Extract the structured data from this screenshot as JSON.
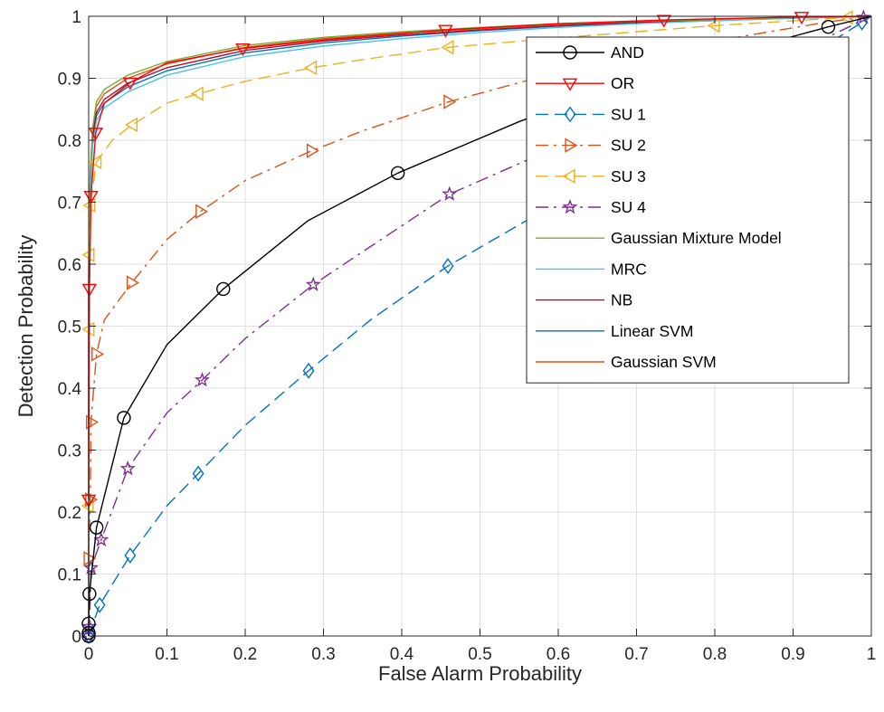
{
  "chart_data": {
    "type": "line",
    "title": "",
    "xlabel": "False Alarm Probability",
    "ylabel": "Detection Probability",
    "xlim": [
      0,
      1
    ],
    "ylim": [
      0,
      1
    ],
    "xticks": [
      "0",
      "0.1",
      "0.2",
      "0.3",
      "0.4",
      "0.5",
      "0.6",
      "0.7",
      "0.8",
      "0.9",
      "1"
    ],
    "yticks": [
      "0",
      "0.1",
      "0.2",
      "0.3",
      "0.4",
      "0.5",
      "0.6",
      "0.7",
      "0.8",
      "0.9",
      "1"
    ],
    "grid": true,
    "legend_position": "top-right",
    "series": [
      {
        "name": "AND",
        "color": "#000000",
        "dash": "solid",
        "marker": "circle",
        "points": [
          [
            0,
            0
          ],
          [
            0,
            0.005
          ],
          [
            0,
            0.02
          ],
          [
            0.001,
            0.068
          ],
          [
            0.01,
            0.175
          ],
          [
            0.045,
            0.352
          ],
          [
            0.1,
            0.47
          ],
          [
            0.172,
            0.56
          ],
          [
            0.28,
            0.67
          ],
          [
            0.395,
            0.747
          ],
          [
            0.55,
            0.83
          ],
          [
            0.7,
            0.9
          ],
          [
            0.82,
            0.94
          ],
          [
            0.945,
            0.983
          ],
          [
            1,
            1
          ]
        ],
        "marker_points": [
          [
            0,
            0
          ],
          [
            0,
            0.005
          ],
          [
            0,
            0.02
          ],
          [
            0.001,
            0.068
          ],
          [
            0.01,
            0.175
          ],
          [
            0.045,
            0.352
          ],
          [
            0.172,
            0.56
          ],
          [
            0.395,
            0.747
          ],
          [
            0.945,
            0.983
          ]
        ]
      },
      {
        "name": "OR",
        "color": "#ff0000",
        "dash": "solid",
        "marker": "triangle-down",
        "points": [
          [
            0,
            0.22
          ],
          [
            0.001,
            0.56
          ],
          [
            0.003,
            0.71
          ],
          [
            0.009,
            0.812
          ],
          [
            0.02,
            0.86
          ],
          [
            0.053,
            0.893
          ],
          [
            0.1,
            0.925
          ],
          [
            0.197,
            0.948
          ],
          [
            0.3,
            0.962
          ],
          [
            0.456,
            0.978
          ],
          [
            0.6,
            0.988
          ],
          [
            0.735,
            0.994
          ],
          [
            0.911,
            0.999
          ],
          [
            1,
            1
          ]
        ],
        "marker_points": [
          [
            0,
            0.22
          ],
          [
            0.001,
            0.56
          ],
          [
            0.003,
            0.71
          ],
          [
            0.009,
            0.812
          ],
          [
            0.053,
            0.893
          ],
          [
            0.197,
            0.948
          ],
          [
            0.456,
            0.978
          ],
          [
            0.735,
            0.994
          ],
          [
            0.911,
            0.999
          ]
        ]
      },
      {
        "name": "SU 1",
        "color": "#0072bd",
        "dash": "dash",
        "marker": "diamond",
        "points": [
          [
            0,
            0
          ],
          [
            0.014,
            0.05
          ],
          [
            0.053,
            0.13
          ],
          [
            0.1,
            0.21
          ],
          [
            0.14,
            0.262
          ],
          [
            0.2,
            0.34
          ],
          [
            0.281,
            0.428
          ],
          [
            0.36,
            0.51
          ],
          [
            0.459,
            0.597
          ],
          [
            0.6,
            0.7
          ],
          [
            0.75,
            0.8
          ],
          [
            0.85,
            0.88
          ],
          [
            0.95,
            0.96
          ],
          [
            0.988,
            0.99
          ],
          [
            1,
            1
          ]
        ],
        "marker_points": [
          [
            0,
            0
          ],
          [
            0.014,
            0.05
          ],
          [
            0.053,
            0.13
          ],
          [
            0.14,
            0.262
          ],
          [
            0.281,
            0.428
          ],
          [
            0.459,
            0.597
          ],
          [
            0.988,
            0.99
          ]
        ]
      },
      {
        "name": "SU 2",
        "color": "#d95319",
        "dash": "dashdot",
        "marker": "triangle-right",
        "points": [
          [
            0,
            0.125
          ],
          [
            0.002,
            0.22
          ],
          [
            0.003,
            0.345
          ],
          [
            0.01,
            0.455
          ],
          [
            0.02,
            0.51
          ],
          [
            0.055,
            0.57
          ],
          [
            0.1,
            0.64
          ],
          [
            0.143,
            0.685
          ],
          [
            0.2,
            0.735
          ],
          [
            0.285,
            0.783
          ],
          [
            0.35,
            0.815
          ],
          [
            0.46,
            0.862
          ],
          [
            0.6,
            0.91
          ],
          [
            0.8,
            0.96
          ],
          [
            0.94,
            0.99
          ],
          [
            1,
            1
          ]
        ],
        "marker_points": [
          [
            0,
            0.125
          ],
          [
            0.002,
            0.22
          ],
          [
            0.003,
            0.345
          ],
          [
            0.01,
            0.455
          ],
          [
            0.055,
            0.57
          ],
          [
            0.143,
            0.685
          ],
          [
            0.285,
            0.783
          ],
          [
            0.46,
            0.862
          ]
        ]
      },
      {
        "name": "SU 3",
        "color": "#edb120",
        "dash": "dash",
        "marker": "triangle-left",
        "points": [
          [
            0,
            0.21
          ],
          [
            0.001,
            0.495
          ],
          [
            0.001,
            0.615
          ],
          [
            0.002,
            0.695
          ],
          [
            0.01,
            0.765
          ],
          [
            0.03,
            0.8
          ],
          [
            0.056,
            0.825
          ],
          [
            0.1,
            0.86
          ],
          [
            0.14,
            0.875
          ],
          [
            0.2,
            0.895
          ],
          [
            0.285,
            0.917
          ],
          [
            0.35,
            0.93
          ],
          [
            0.46,
            0.95
          ],
          [
            0.6,
            0.965
          ],
          [
            0.8,
            0.985
          ],
          [
            0.97,
            0.998
          ],
          [
            1,
            1
          ]
        ],
        "marker_points": [
          [
            0,
            0.21
          ],
          [
            0.001,
            0.495
          ],
          [
            0.001,
            0.615
          ],
          [
            0.002,
            0.695
          ],
          [
            0.01,
            0.765
          ],
          [
            0.056,
            0.825
          ],
          [
            0.14,
            0.875
          ],
          [
            0.285,
            0.917
          ],
          [
            0.46,
            0.95
          ],
          [
            0.8,
            0.985
          ],
          [
            0.97,
            0.998
          ]
        ]
      },
      {
        "name": "SU 4",
        "color": "#7e2f8e",
        "dash": "dashdot",
        "marker": "star",
        "points": [
          [
            0,
            0
          ],
          [
            0.001,
            0.015
          ],
          [
            0.003,
            0.11
          ],
          [
            0.016,
            0.155
          ],
          [
            0.05,
            0.27
          ],
          [
            0.1,
            0.36
          ],
          [
            0.145,
            0.413
          ],
          [
            0.2,
            0.48
          ],
          [
            0.287,
            0.567
          ],
          [
            0.35,
            0.62
          ],
          [
            0.461,
            0.713
          ],
          [
            0.6,
            0.79
          ],
          [
            0.75,
            0.87
          ],
          [
            0.9,
            0.94
          ],
          [
            1,
            1
          ]
        ],
        "marker_points": [
          [
            0,
            0
          ],
          [
            0.001,
            0.015
          ],
          [
            0.003,
            0.11
          ],
          [
            0.016,
            0.155
          ],
          [
            0.05,
            0.27
          ],
          [
            0.145,
            0.413
          ],
          [
            0.287,
            0.567
          ],
          [
            0.461,
            0.713
          ],
          [
            0.99,
            0.998
          ]
        ]
      },
      {
        "name": "Gaussian Mixture Model",
        "color": "#77ac30",
        "dash": "solid",
        "marker": "none",
        "points": [
          [
            0,
            0
          ],
          [
            0,
            0.6
          ],
          [
            0.002,
            0.75
          ],
          [
            0.005,
            0.82
          ],
          [
            0.01,
            0.862
          ],
          [
            0.02,
            0.882
          ],
          [
            0.05,
            0.905
          ],
          [
            0.1,
            0.927
          ],
          [
            0.2,
            0.953
          ],
          [
            0.3,
            0.966
          ],
          [
            0.4,
            0.975
          ],
          [
            0.5,
            0.982
          ],
          [
            0.6,
            0.988
          ],
          [
            0.7,
            0.992
          ],
          [
            0.8,
            0.995
          ],
          [
            0.9,
            0.998
          ],
          [
            1,
            1
          ]
        ]
      },
      {
        "name": "MRC",
        "color": "#4dbeee",
        "dash": "solid",
        "marker": "none",
        "points": [
          [
            0,
            0
          ],
          [
            0,
            0.5
          ],
          [
            0.002,
            0.7
          ],
          [
            0.005,
            0.79
          ],
          [
            0.01,
            0.832
          ],
          [
            0.02,
            0.852
          ],
          [
            0.05,
            0.878
          ],
          [
            0.1,
            0.905
          ],
          [
            0.2,
            0.935
          ],
          [
            0.3,
            0.952
          ],
          [
            0.4,
            0.964
          ],
          [
            0.5,
            0.974
          ],
          [
            0.6,
            0.982
          ],
          [
            0.7,
            0.988
          ],
          [
            0.8,
            0.993
          ],
          [
            0.9,
            0.997
          ],
          [
            1,
            1
          ]
        ]
      },
      {
        "name": "NB",
        "color": "#a2142f",
        "dash": "solid",
        "marker": "none",
        "points": [
          [
            0,
            0
          ],
          [
            0,
            0.55
          ],
          [
            0.002,
            0.73
          ],
          [
            0.005,
            0.805
          ],
          [
            0.01,
            0.845
          ],
          [
            0.02,
            0.866
          ],
          [
            0.05,
            0.892
          ],
          [
            0.1,
            0.917
          ],
          [
            0.2,
            0.945
          ],
          [
            0.3,
            0.96
          ],
          [
            0.4,
            0.97
          ],
          [
            0.5,
            0.978
          ],
          [
            0.6,
            0.985
          ],
          [
            0.7,
            0.99
          ],
          [
            0.8,
            0.994
          ],
          [
            0.9,
            0.997
          ],
          [
            1,
            1
          ]
        ]
      },
      {
        "name": "Linear SVM",
        "color": "#0072bd",
        "dash": "solid",
        "marker": "none",
        "points": [
          [
            0,
            0
          ],
          [
            0,
            0.53
          ],
          [
            0.002,
            0.72
          ],
          [
            0.005,
            0.8
          ],
          [
            0.01,
            0.84
          ],
          [
            0.02,
            0.86
          ],
          [
            0.05,
            0.886
          ],
          [
            0.1,
            0.912
          ],
          [
            0.2,
            0.941
          ],
          [
            0.3,
            0.957
          ],
          [
            0.4,
            0.968
          ],
          [
            0.5,
            0.977
          ],
          [
            0.6,
            0.984
          ],
          [
            0.7,
            0.989
          ],
          [
            0.8,
            0.993
          ],
          [
            0.9,
            0.997
          ],
          [
            1,
            1
          ]
        ]
      },
      {
        "name": "Gaussian SVM",
        "color": "#d95319",
        "dash": "solid",
        "marker": "none",
        "points": [
          [
            0,
            0
          ],
          [
            0,
            0.58
          ],
          [
            0.002,
            0.74
          ],
          [
            0.005,
            0.815
          ],
          [
            0.01,
            0.855
          ],
          [
            0.02,
            0.875
          ],
          [
            0.05,
            0.9
          ],
          [
            0.1,
            0.923
          ],
          [
            0.2,
            0.95
          ],
          [
            0.3,
            0.964
          ],
          [
            0.4,
            0.973
          ],
          [
            0.5,
            0.98
          ],
          [
            0.6,
            0.987
          ],
          [
            0.7,
            0.991
          ],
          [
            0.8,
            0.995
          ],
          [
            0.9,
            0.998
          ],
          [
            1,
            1
          ]
        ]
      }
    ]
  }
}
